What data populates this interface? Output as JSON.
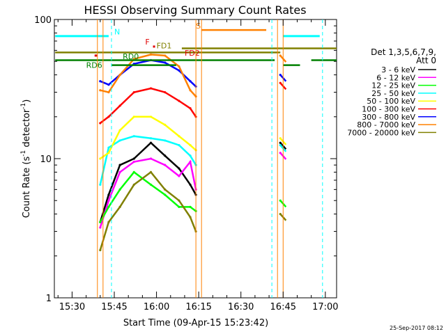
{
  "chart_data": {
    "type": "line",
    "title": "HESSI Observing Summary Count Rates",
    "xlabel": "Start Time (09-Apr-15 15:23:42)",
    "ylabel": "Count Rate (s",
    "ylabel_sup": "-1",
    "ylabel_rest": " detector",
    "ylabel_sup2": "-1",
    "ylabel_end": ")",
    "y_scale": "log",
    "ylim": [
      1,
      100
    ],
    "xlim": [
      "15:23:42",
      "17:04:00"
    ],
    "x_ticks": [
      "15:30",
      "15:45",
      "16:00",
      "16:15",
      "16:30",
      "16:45",
      "17:00"
    ],
    "y_ticks": [
      "1",
      "10",
      "100"
    ],
    "legend_header_line1": "Det 1,3,5,6,7,9,",
    "legend_header_line2": "Att 0",
    "legend_placement": "right",
    "timestamp": "25-Sep-2017 08:12",
    "flags": {
      "N": {
        "label": "N",
        "color": "#00ffff"
      },
      "S": {
        "label": "S",
        "color": "#ff8000"
      },
      "F": {
        "label": "F",
        "color": "#e00000"
      },
      "FD1": {
        "label": "FD1",
        "color": "#808000"
      },
      "RD0": {
        "label": "RD0",
        "color": "#008000"
      },
      "RD6": {
        "label": "RD6",
        "color": "#008000"
      },
      "FD2": {
        "label": "FD2",
        "color": "#e00000"
      }
    },
    "series": [
      {
        "name": "3 - 6 keV",
        "color": "#000000",
        "values": [
          3.5,
          5.5,
          9,
          10,
          13,
          10.5,
          8.5,
          6.5,
          5.5,
          13
        ]
      },
      {
        "name": "6 - 12 keV",
        "color": "#ff00ff",
        "values": [
          3.2,
          5,
          8,
          9.5,
          10,
          9,
          7.5,
          9.5,
          6,
          11
        ]
      },
      {
        "name": "12 - 25 keV",
        "color": "#00ff00",
        "values": [
          3.5,
          4.5,
          6,
          8,
          6.5,
          5.5,
          4.5,
          4.5,
          4.2,
          5
        ]
      },
      {
        "name": "25 - 50 keV",
        "color": "#00ffff",
        "values": [
          6.5,
          12,
          13.5,
          14.5,
          14,
          13.5,
          12.5,
          10.5,
          9,
          12.5
        ]
      },
      {
        "name": "50 - 100 keV",
        "color": "#ffff00",
        "values": [
          10,
          11,
          16,
          20,
          20,
          17.5,
          14.5,
          12.5,
          11.5,
          14
        ]
      },
      {
        "name": "100 - 300 keV",
        "color": "#ff0000",
        "values": [
          18,
          20,
          24,
          30,
          32,
          30,
          26,
          23,
          20,
          35
        ]
      },
      {
        "name": "300 - 800 keV",
        "color": "#0000ff",
        "values": [
          36,
          34,
          40,
          48,
          51,
          49,
          43,
          36,
          33,
          40
        ]
      },
      {
        "name": "800 - 7000 keV",
        "color": "#ff8000",
        "values": [
          31,
          30,
          40,
          52,
          56,
          55,
          46,
          31,
          28,
          55
        ]
      },
      {
        "name": "7000 - 20000 keV",
        "color": "#808000",
        "values": [
          2.2,
          3.5,
          4.5,
          6.5,
          8,
          6,
          5,
          3.8,
          3,
          4
        ]
      }
    ],
    "series_times": [
      "15:40",
      "15:43",
      "15:47",
      "15:52",
      "15:58",
      "16:03",
      "16:08",
      "16:12",
      "16:14",
      "16:44"
    ]
  }
}
